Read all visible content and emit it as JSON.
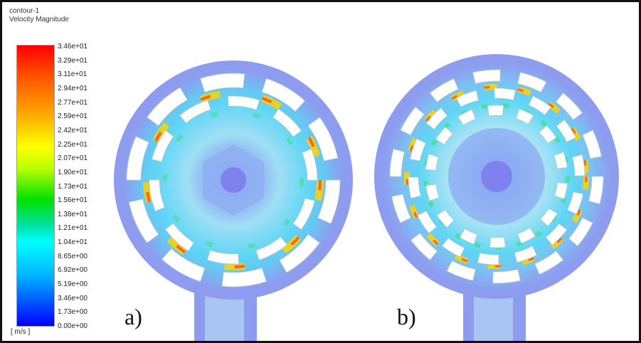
{
  "legend": {
    "name": "contour-1",
    "quantity": "Velocity Magnitude",
    "unit": "[ m/s ]",
    "ticks": [
      "3.46e+01",
      "3.29e+01",
      "3.11e+01",
      "2.94e+01",
      "2.77e+01",
      "2.59e+01",
      "2.42e+01",
      "2.25e+01",
      "2.07e+01",
      "1.90e+01",
      "1.73e+01",
      "1.56e+01",
      "1.38e+01",
      "1.21e+01",
      "1.04e+01",
      "8.65e+00",
      "6.92e+00",
      "5.19e+00",
      "3.46e+00",
      "1.73e+00",
      "0.00e+00"
    ]
  },
  "panels": {
    "a": {
      "label": "a)",
      "blades": 10
    },
    "b": {
      "label": "b)",
      "blades": 14
    }
  },
  "colors": {
    "outer": "#8e9cf0",
    "mid": "#9dd2f3",
    "hub": "#7f82ee",
    "cyan": "#4fd9f6",
    "blade": "#ffffff",
    "hot": "#ff3a1a"
  }
}
